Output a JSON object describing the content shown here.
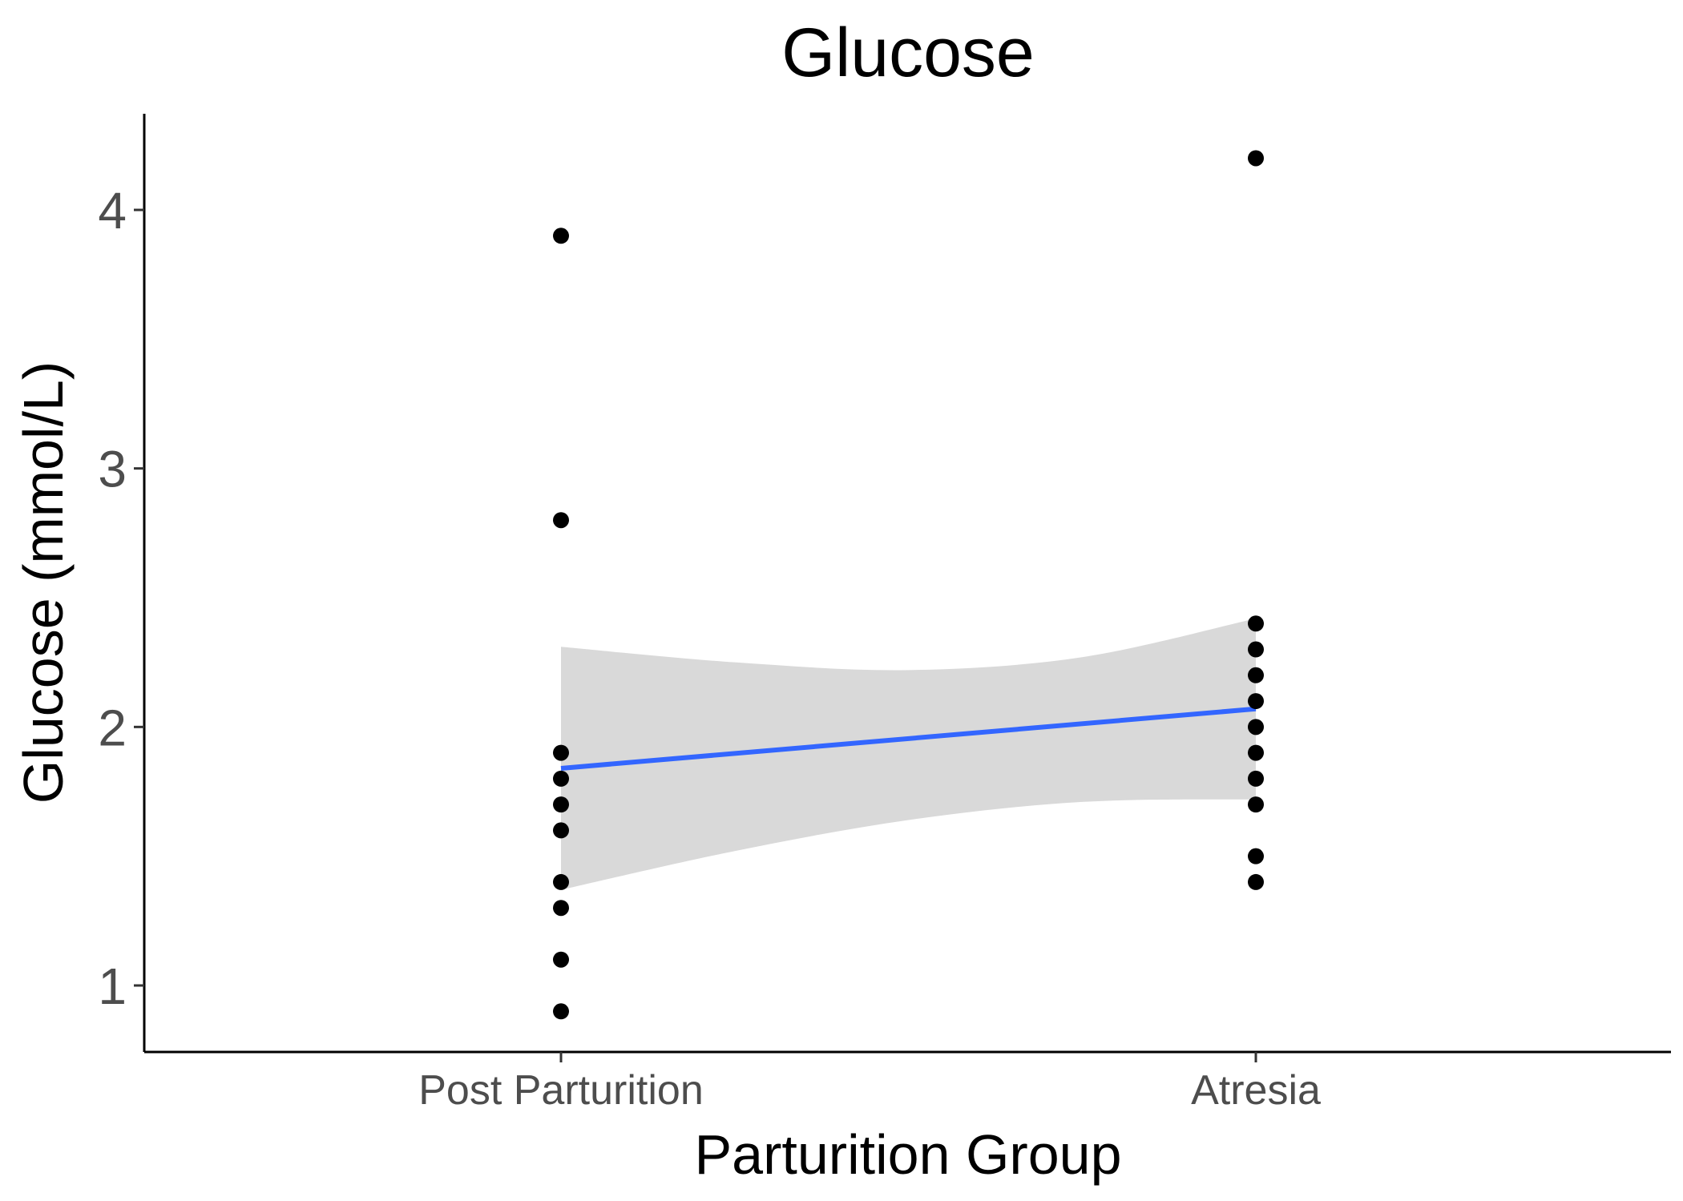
{
  "chart_data": {
    "type": "scatter",
    "title": "Glucose",
    "xlabel": "Parturition Group",
    "ylabel": "Glucose (mmol/L)",
    "categories": [
      "Post Parturition",
      "Atresia"
    ],
    "yticks": [
      1,
      2,
      3,
      4
    ],
    "ylim": [
      0.75,
      4.35
    ],
    "grid": false,
    "legend": "none",
    "series": [
      {
        "category": "Post Parturition",
        "values": [
          3.9,
          2.8,
          1.9,
          1.8,
          1.7,
          1.6,
          1.4,
          1.3,
          1.1,
          0.9
        ]
      },
      {
        "category": "Atresia",
        "values": [
          4.2,
          2.4,
          2.3,
          2.2,
          2.1,
          2.0,
          1.9,
          1.8,
          1.7,
          1.5,
          1.4
        ]
      }
    ],
    "fit": {
      "method": "linear",
      "x": [
        "Post Parturition",
        "Atresia"
      ],
      "y": [
        1.84,
        2.07
      ],
      "color": "#3366ff"
    },
    "confidence_band": {
      "color": "#d9d9d9",
      "x_frac": [
        0,
        0.25,
        0.5,
        0.75,
        1
      ],
      "upper": [
        2.31,
        2.25,
        2.22,
        2.27,
        2.42
      ],
      "lower": [
        1.37,
        1.52,
        1.64,
        1.71,
        1.72
      ]
    },
    "point_color": "#000000"
  }
}
